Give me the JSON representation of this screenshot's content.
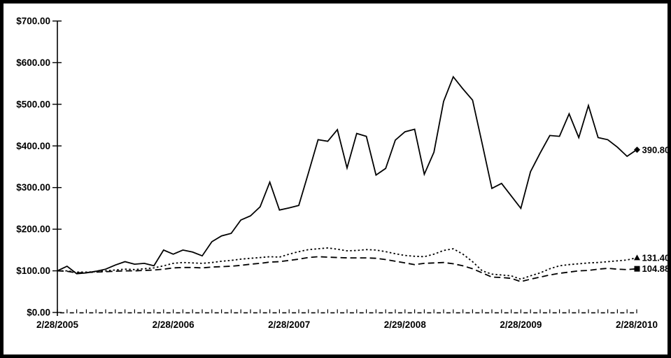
{
  "chart_data": {
    "type": "line",
    "title": "",
    "xlabel": "",
    "ylabel": "",
    "grid": false,
    "legend": "none",
    "background_color": "#ffffff",
    "border_color": "#000000",
    "line_color": "#000000",
    "ylim": [
      0,
      700
    ],
    "x_months": 60,
    "x_tick_labels": [
      "2/28/2005",
      "2/28/2006",
      "2/28/2007",
      "2/29/2008",
      "2/28/2009",
      "2/28/2010"
    ],
    "y_tick_labels": [
      "$0.00",
      "$100.00",
      "$200.00",
      "$300.00",
      "$400.00",
      "$500.00",
      "$600.00",
      "$700.00"
    ],
    "series": [
      {
        "name": "solid",
        "style": "solid",
        "end_marker": "diamond",
        "end_label": "390.80",
        "values": [
          100,
          111,
          93,
          95,
          99,
          104,
          114,
          122,
          116,
          118,
          112,
          150,
          140,
          150,
          145,
          136,
          170,
          184,
          190,
          222,
          232,
          254,
          313,
          246,
          251,
          257,
          335,
          415,
          411,
          439,
          347,
          430,
          423,
          330,
          346,
          414,
          434,
          440,
          332,
          385,
          507,
          566,
          537,
          510,
          405,
          298,
          310,
          280,
          250,
          338,
          383,
          425,
          423,
          477,
          420,
          497,
          420,
          415,
          397,
          375,
          390.8
        ]
      },
      {
        "name": "dotted",
        "style": "dotted",
        "end_marker": "triangle",
        "end_label": "131.40",
        "values": [
          100,
          100,
          97,
          97,
          98,
          100,
          102,
          104,
          103,
          105,
          107,
          112,
          118,
          120,
          119,
          118,
          120,
          123,
          125,
          128,
          130,
          132,
          134,
          133,
          140,
          146,
          151,
          153,
          155,
          152,
          148,
          149,
          151,
          150,
          146,
          141,
          137,
          135,
          134,
          140,
          149,
          153,
          140,
          122,
          100,
          92,
          90,
          88,
          80,
          88,
          95,
          105,
          112,
          115,
          117,
          119,
          120,
          122,
          124,
          126,
          131.4
        ]
      },
      {
        "name": "dashed",
        "style": "dashed",
        "end_marker": "square",
        "end_label": "104.88",
        "values": [
          100,
          99,
          95,
          96,
          97,
          98,
          99,
          100,
          100,
          101,
          102,
          104,
          107,
          108,
          108,
          107,
          109,
          110,
          111,
          113,
          116,
          118,
          121,
          122,
          125,
          128,
          132,
          134,
          133,
          132,
          131,
          131,
          131,
          130,
          127,
          123,
          119,
          115,
          118,
          119,
          120,
          117,
          112,
          105,
          95,
          85,
          84,
          82,
          74,
          80,
          85,
          90,
          94,
          97,
          100,
          101,
          104,
          106,
          104,
          103,
          104.88
        ]
      }
    ]
  }
}
